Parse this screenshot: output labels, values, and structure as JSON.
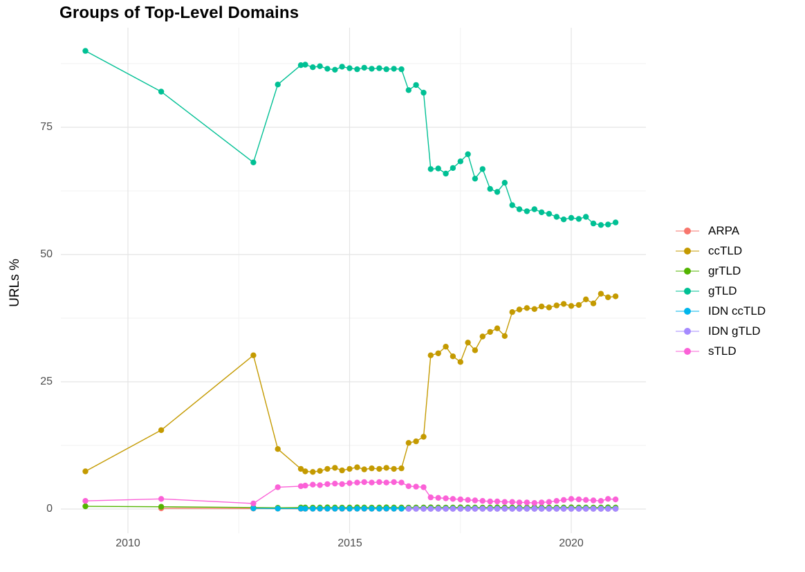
{
  "title": "Groups of Top-Level Domains",
  "axes": {
    "y_title": "URLs %",
    "y_ticks": [
      "75",
      "50",
      "25",
      "0"
    ],
    "x_ticks": [
      "2010",
      "2015",
      "2020"
    ]
  },
  "legend": {
    "items": [
      {
        "label": "ARPA",
        "color": "#F8766D"
      },
      {
        "label": "ccTLD",
        "color": "#C49A00"
      },
      {
        "label": "grTLD",
        "color": "#53B400"
      },
      {
        "label": "gTLD",
        "color": "#00C094"
      },
      {
        "label": "IDN ccTLD",
        "color": "#00B6EB"
      },
      {
        "label": "IDN gTLD",
        "color": "#A58AFF"
      },
      {
        "label": "sTLD",
        "color": "#FB61D7"
      }
    ]
  },
  "chart_data": {
    "type": "line",
    "title": "Groups of Top-Level Domains",
    "xlabel": "",
    "ylabel": "URLs %",
    "xlim": [
      2008.5,
      2021.7
    ],
    "ylim": [
      -4.6,
      94.6
    ],
    "grid": {
      "x_major": [
        2010,
        2015,
        2020
      ],
      "x_minor": [
        2012.5,
        2017.5
      ],
      "y_major": [
        0,
        25,
        50,
        75
      ],
      "y_minor": [
        12.5,
        37.5,
        62.5,
        87.5
      ]
    },
    "legend_position": "right",
    "series": [
      {
        "name": "ARPA",
        "color": "#F8766D",
        "x": [
          2010.75,
          2012.83,
          2013.38,
          2013.9,
          2014.0,
          2014.17,
          2014.33,
          2014.5,
          2014.67,
          2014.83,
          2015.0,
          2015.17,
          2015.33,
          2015.5,
          2015.67,
          2015.83,
          2016.0,
          2016.17,
          2016.33,
          2016.5,
          2016.67,
          2016.83,
          2017.0,
          2017.17,
          2017.33,
          2017.5,
          2017.67,
          2017.83,
          2018.0,
          2018.17,
          2018.33,
          2018.5,
          2018.67,
          2018.83,
          2019.0,
          2019.17,
          2019.33,
          2019.5,
          2019.67,
          2019.83,
          2020.0,
          2020.17,
          2020.33,
          2020.5,
          2020.67,
          2020.83,
          2021.0
        ],
        "y": [
          0.15,
          0.1,
          0.08,
          0.06,
          0.05,
          0.06,
          0.05,
          0.05,
          0.06,
          0.05,
          0.05,
          0.06,
          0.05,
          0.05,
          0.06,
          0.05,
          0.05,
          0.06,
          0.05,
          0.05,
          0.06,
          0.05,
          0.05,
          0.06,
          0.05,
          0.05,
          0.06,
          0.05,
          0.05,
          0.06,
          0.05,
          0.05,
          0.06,
          0.05,
          0.05,
          0.06,
          0.05,
          0.05,
          0.06,
          0.05,
          0.05,
          0.06,
          0.05,
          0.05,
          0.06,
          0.05,
          0.05
        ]
      },
      {
        "name": "ccTLD",
        "color": "#C49A00",
        "x": [
          2009.04,
          2010.75,
          2012.83,
          2013.38,
          2013.9,
          2014.0,
          2014.17,
          2014.33,
          2014.5,
          2014.67,
          2014.83,
          2015.0,
          2015.17,
          2015.33,
          2015.5,
          2015.67,
          2015.83,
          2016.0,
          2016.17,
          2016.33,
          2016.5,
          2016.67,
          2016.83,
          2017.0,
          2017.17,
          2017.33,
          2017.5,
          2017.67,
          2017.83,
          2018.0,
          2018.17,
          2018.33,
          2018.5,
          2018.67,
          2018.83,
          2019.0,
          2019.17,
          2019.33,
          2019.5,
          2019.67,
          2019.83,
          2020.0,
          2020.17,
          2020.33,
          2020.5,
          2020.67,
          2020.83,
          2021.0
        ],
        "y": [
          7.4,
          15.5,
          30.2,
          11.8,
          7.9,
          7.4,
          7.3,
          7.5,
          7.9,
          8.1,
          7.6,
          7.9,
          8.2,
          7.8,
          8.0,
          7.9,
          8.1,
          7.9,
          8.0,
          13.0,
          13.3,
          14.2,
          30.2,
          30.6,
          31.9,
          30.0,
          28.9,
          32.7,
          31.2,
          33.9,
          34.8,
          35.5,
          34.0,
          38.7,
          39.2,
          39.5,
          39.3,
          39.8,
          39.6,
          40.0,
          40.3,
          39.9,
          40.1,
          41.2,
          40.4,
          42.3,
          41.6,
          41.8
        ]
      },
      {
        "name": "grTLD",
        "color": "#53B400",
        "x": [
          2009.04,
          2010.75,
          2012.83,
          2013.38,
          2013.9,
          2014.0,
          2014.17,
          2014.33,
          2014.5,
          2014.67,
          2014.83,
          2015.0,
          2015.17,
          2015.33,
          2015.5,
          2015.67,
          2015.83,
          2016.0,
          2016.17,
          2016.33,
          2016.5,
          2016.67,
          2016.83,
          2017.0,
          2017.17,
          2017.33,
          2017.5,
          2017.67,
          2017.83,
          2018.0,
          2018.17,
          2018.33,
          2018.5,
          2018.67,
          2018.83,
          2019.0,
          2019.17,
          2019.33,
          2019.5,
          2019.67,
          2019.83,
          2020.0,
          2020.17,
          2020.33,
          2020.5,
          2020.67,
          2020.83,
          2021.0
        ],
        "y": [
          0.55,
          0.45,
          0.3,
          0.25,
          0.3,
          0.3,
          0.28,
          0.3,
          0.32,
          0.3,
          0.28,
          0.3,
          0.32,
          0.3,
          0.28,
          0.3,
          0.32,
          0.3,
          0.3,
          0.28,
          0.3,
          0.3,
          0.32,
          0.3,
          0.28,
          0.3,
          0.32,
          0.3,
          0.3,
          0.28,
          0.3,
          0.32,
          0.3,
          0.3,
          0.28,
          0.3,
          0.32,
          0.3,
          0.3,
          0.28,
          0.3,
          0.32,
          0.3,
          0.3,
          0.28,
          0.3,
          0.32,
          0.3
        ]
      },
      {
        "name": "gTLD",
        "color": "#00C094",
        "x": [
          2009.04,
          2010.75,
          2012.83,
          2013.38,
          2013.9,
          2014.0,
          2014.17,
          2014.33,
          2014.5,
          2014.67,
          2014.83,
          2015.0,
          2015.17,
          2015.33,
          2015.5,
          2015.67,
          2015.83,
          2016.0,
          2016.17,
          2016.33,
          2016.5,
          2016.67,
          2016.83,
          2017.0,
          2017.17,
          2017.33,
          2017.5,
          2017.67,
          2017.83,
          2018.0,
          2018.17,
          2018.33,
          2018.5,
          2018.67,
          2018.83,
          2019.0,
          2019.17,
          2019.33,
          2019.5,
          2019.67,
          2019.83,
          2020.0,
          2020.17,
          2020.33,
          2020.5,
          2020.67,
          2020.83,
          2021.0
        ],
        "y": [
          90.0,
          82.0,
          68.1,
          83.4,
          87.2,
          87.3,
          86.8,
          87.0,
          86.5,
          86.3,
          86.9,
          86.6,
          86.4,
          86.7,
          86.5,
          86.6,
          86.4,
          86.5,
          86.4,
          82.3,
          83.3,
          81.8,
          66.8,
          66.9,
          65.9,
          67.0,
          68.3,
          69.7,
          64.9,
          66.8,
          62.9,
          62.3,
          64.1,
          59.7,
          58.9,
          58.5,
          58.9,
          58.3,
          58.0,
          57.4,
          56.9,
          57.2,
          57.0,
          57.4,
          56.1,
          55.8,
          55.9,
          56.3
        ]
      },
      {
        "name": "IDN ccTLD",
        "color": "#00B6EB",
        "x": [
          2012.83,
          2013.38,
          2013.9,
          2014.0,
          2014.17,
          2014.33,
          2014.5,
          2014.67,
          2014.83,
          2015.0,
          2015.17,
          2015.33,
          2015.5,
          2015.67,
          2015.83,
          2016.0,
          2016.17,
          2016.33,
          2016.5,
          2016.67,
          2016.83,
          2017.0,
          2017.17,
          2017.33,
          2017.5,
          2017.67,
          2017.83,
          2018.0,
          2018.17,
          2018.33,
          2018.5,
          2018.67,
          2018.83,
          2019.0,
          2019.17,
          2019.33,
          2019.5,
          2019.67,
          2019.83,
          2020.0,
          2020.17,
          2020.33,
          2020.5,
          2020.67,
          2020.83,
          2021.0
        ],
        "y": [
          0.15,
          0.1,
          0.1,
          0.08,
          0.08,
          0.09,
          0.08,
          0.08,
          0.09,
          0.08,
          0.08,
          0.09,
          0.08,
          0.08,
          0.09,
          0.08,
          0.08,
          0.09,
          0.08,
          0.08,
          0.09,
          0.08,
          0.08,
          0.09,
          0.08,
          0.08,
          0.09,
          0.08,
          0.08,
          0.09,
          0.08,
          0.08,
          0.09,
          0.08,
          0.08,
          0.09,
          0.08,
          0.08,
          0.09,
          0.08,
          0.08,
          0.09,
          0.08,
          0.08,
          0.09,
          0.08
        ]
      },
      {
        "name": "IDN gTLD",
        "color": "#A58AFF",
        "x": [
          2016.33,
          2016.5,
          2016.67,
          2016.83,
          2017.0,
          2017.17,
          2017.33,
          2017.5,
          2017.67,
          2017.83,
          2018.0,
          2018.17,
          2018.33,
          2018.5,
          2018.67,
          2018.83,
          2019.0,
          2019.17,
          2019.33,
          2019.5,
          2019.67,
          2019.83,
          2020.0,
          2020.17,
          2020.33,
          2020.5,
          2020.67,
          2020.83,
          2021.0
        ],
        "y": [
          0.04,
          0.05,
          0.04,
          0.04,
          0.05,
          0.04,
          0.04,
          0.05,
          0.04,
          0.04,
          0.05,
          0.04,
          0.04,
          0.05,
          0.04,
          0.04,
          0.05,
          0.04,
          0.04,
          0.05,
          0.04,
          0.04,
          0.05,
          0.04,
          0.04,
          0.05,
          0.04,
          0.04,
          0.05
        ]
      },
      {
        "name": "sTLD",
        "color": "#FB61D7",
        "x": [
          2009.04,
          2010.75,
          2012.83,
          2013.38,
          2013.9,
          2014.0,
          2014.17,
          2014.33,
          2014.5,
          2014.67,
          2014.83,
          2015.0,
          2015.17,
          2015.33,
          2015.5,
          2015.67,
          2015.83,
          2016.0,
          2016.17,
          2016.33,
          2016.5,
          2016.67,
          2016.83,
          2017.0,
          2017.17,
          2017.33,
          2017.5,
          2017.67,
          2017.83,
          2018.0,
          2018.17,
          2018.33,
          2018.5,
          2018.67,
          2018.83,
          2019.0,
          2019.17,
          2019.33,
          2019.5,
          2019.67,
          2019.83,
          2020.0,
          2020.17,
          2020.33,
          2020.5,
          2020.67,
          2020.83,
          2021.0
        ],
        "y": [
          1.6,
          2.0,
          1.1,
          4.3,
          4.5,
          4.6,
          4.8,
          4.7,
          4.9,
          5.0,
          4.9,
          5.1,
          5.2,
          5.3,
          5.2,
          5.3,
          5.2,
          5.3,
          5.2,
          4.5,
          4.4,
          4.3,
          2.3,
          2.2,
          2.1,
          2.0,
          1.9,
          1.8,
          1.7,
          1.6,
          1.5,
          1.5,
          1.4,
          1.4,
          1.3,
          1.3,
          1.2,
          1.3,
          1.4,
          1.6,
          1.8,
          2.0,
          1.9,
          1.8,
          1.7,
          1.6,
          2.0,
          1.9
        ]
      }
    ]
  }
}
